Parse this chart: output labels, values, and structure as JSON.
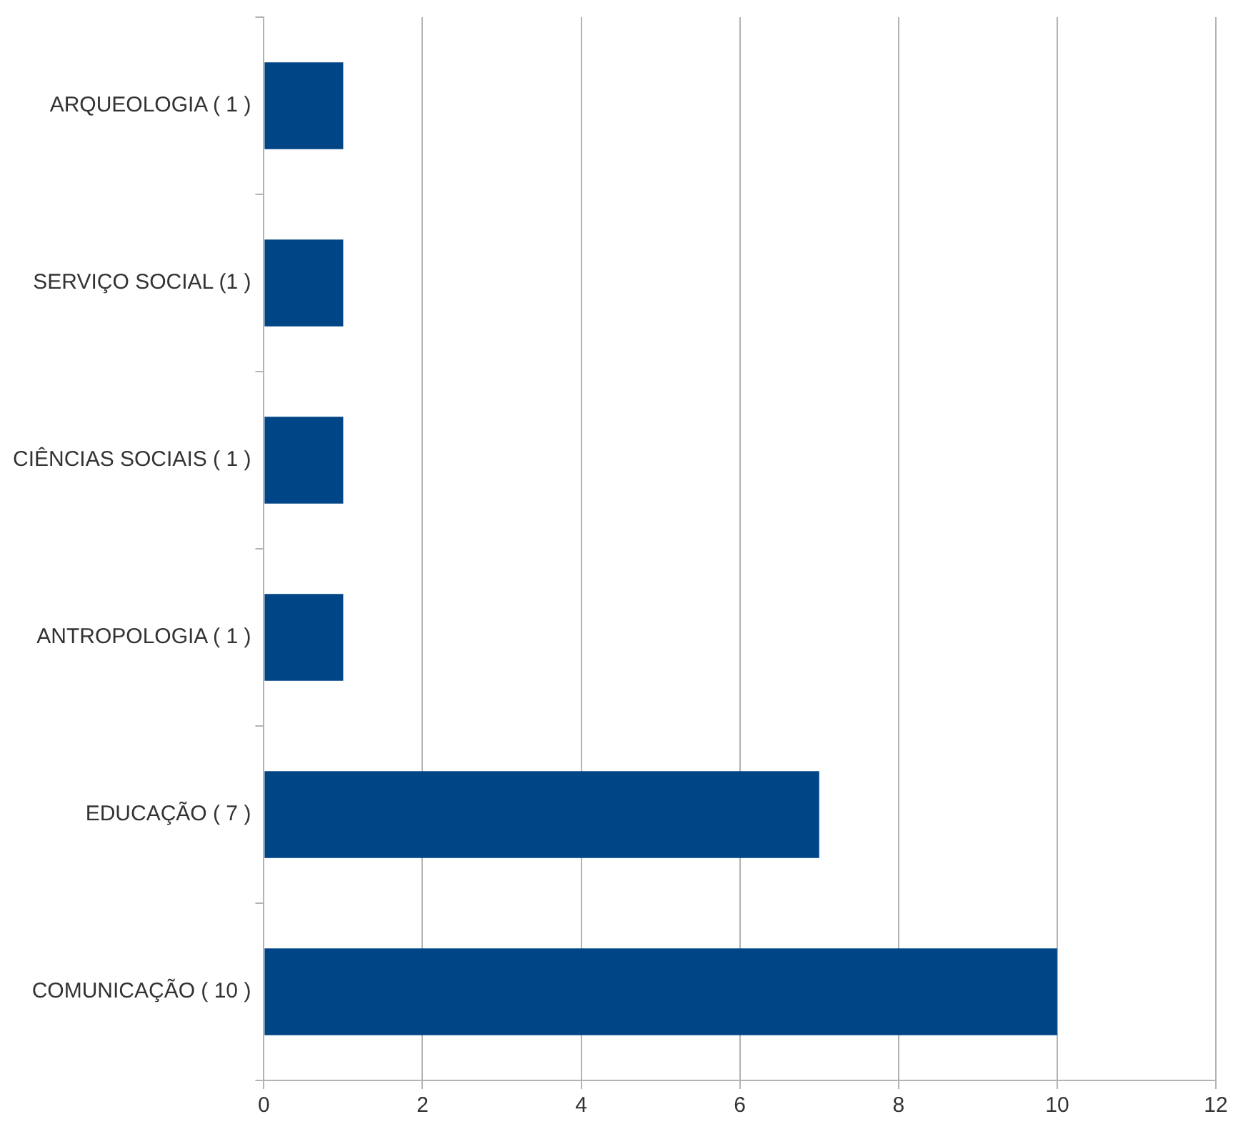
{
  "chart_data": {
    "type": "bar",
    "orientation": "horizontal",
    "categories": [
      "ARQUEOLOGIA ( 1 )",
      "SERVIÇO SOCIAL (1 )",
      "CIÊNCIAS SOCIAIS ( 1 )",
      "ANTROPOLOGIA ( 1 )",
      "EDUCAÇÃO ( 7 )",
      "COMUNICAÇÃO ( 10 )"
    ],
    "values": [
      1,
      1,
      1,
      1,
      7,
      10
    ],
    "color": "#004586",
    "xlim": [
      0,
      12
    ],
    "xticks": [
      0,
      2,
      4,
      6,
      8,
      10,
      12
    ],
    "grid": "x"
  }
}
